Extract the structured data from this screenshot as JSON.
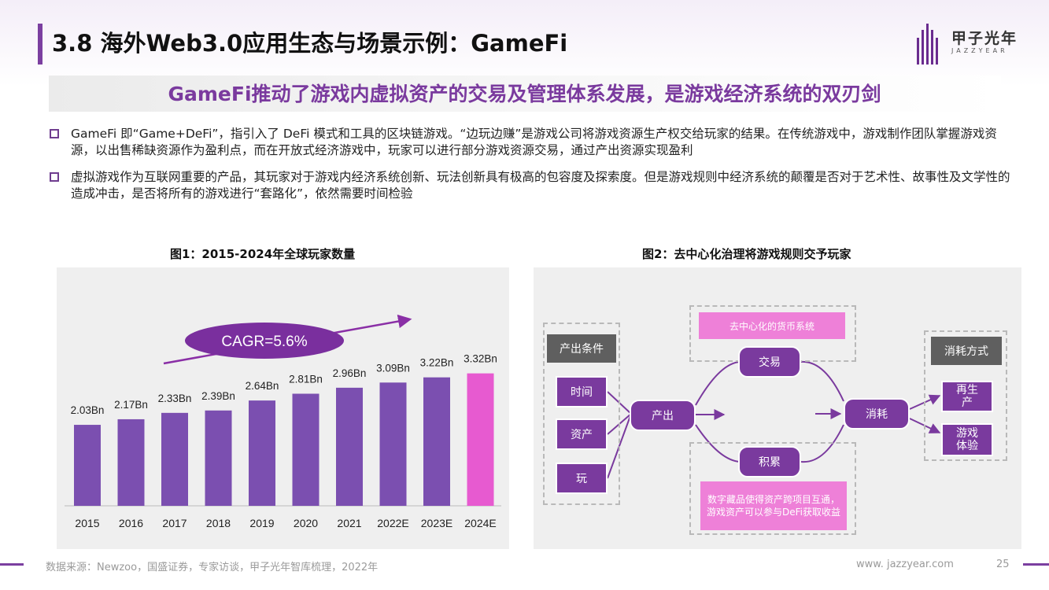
{
  "header": {
    "title": "3.8 海外Web3.0应用生态与场景示例：GameFi",
    "logo_cn": "甲子光年",
    "logo_en": "JAZZYEAR"
  },
  "subtitle": "GameFi推动了游戏内虚拟资产的交易及管理体系发展，是游戏经济系统的双刃剑",
  "bullets": [
    "GameFi 即“Game+DeFi”，指引入了 DeFi 模式和工具的区块链游戏。“边玩边赚”是游戏公司将游戏资源生产权交给玩家的结果。在传统游戏中，游戏制作团队掌握游戏资源，以出售稀缺资源作为盈利点，而在开放式经济游戏中，玩家可以进行部分游戏资源交易，通过产出资源实现盈利",
    "虚拟游戏作为互联网重要的产品，其玩家对于游戏内经济系统创新、玩法创新具有极高的包容度及探索度。但是游戏规则中经济系统的颠覆是否对于艺术性、故事性及文学性的造成冲击，是否将所有的游戏进行“套路化”，依然需要时间检验"
  ],
  "figure1": {
    "title": "图1：2015-2024年全球玩家数量",
    "cagr_label": "CAGR=5.6%"
  },
  "chart_data": {
    "type": "bar",
    "title": "图1：2015-2024年全球玩家数量",
    "categories": [
      "2015",
      "2016",
      "2017",
      "2018",
      "2019",
      "2020",
      "2021",
      "2022E",
      "2023E",
      "2024E"
    ],
    "values": [
      2.03,
      2.17,
      2.33,
      2.39,
      2.64,
      2.81,
      2.96,
      3.09,
      3.22,
      3.32
    ],
    "data_labels": [
      "2.03Bn",
      "2.17Bn",
      "2.33Bn",
      "2.39Bn",
      "2.64Bn",
      "2.81Bn",
      "2.96Bn",
      "3.09Bn",
      "3.22Bn",
      "3.32Bn"
    ],
    "xlabel": "",
    "ylabel": "",
    "ylim": [
      0,
      4.2
    ],
    "grid": false,
    "colors": {
      "bar": "#7b4fb0",
      "highlight": "#e75ad0",
      "cagr_ellipse": "#7a2f9e",
      "arrow": "#8a2fa6"
    },
    "annotations": [
      "CAGR=5.6%"
    ]
  },
  "figure2": {
    "title": "图2：去中心化治理将游戏规则交予玩家",
    "input_header": "产出条件",
    "inputs": [
      "时间",
      "资产",
      "玩"
    ],
    "produce": "产出",
    "top_box": "去中心化的货币系统",
    "trade": "交易",
    "accumulate": "积累",
    "bottom_box": "数字藏品使得资产跨项目互通，游戏资产可以参与DeFi获取收益",
    "consume": "消耗",
    "output_header": "消耗方式",
    "outputs": [
      "再生产",
      "游戏体验"
    ]
  },
  "footer": {
    "source": "数据来源：Newzoo，国盛证券，专家访谈，甲子光年智库梳理，2022年",
    "url": "www. jazzyear.com",
    "page": "25"
  },
  "colors": {
    "accent_purple": "#7a3a9e",
    "pink": "#ee80d8",
    "gray_header": "#5f5f5f"
  }
}
